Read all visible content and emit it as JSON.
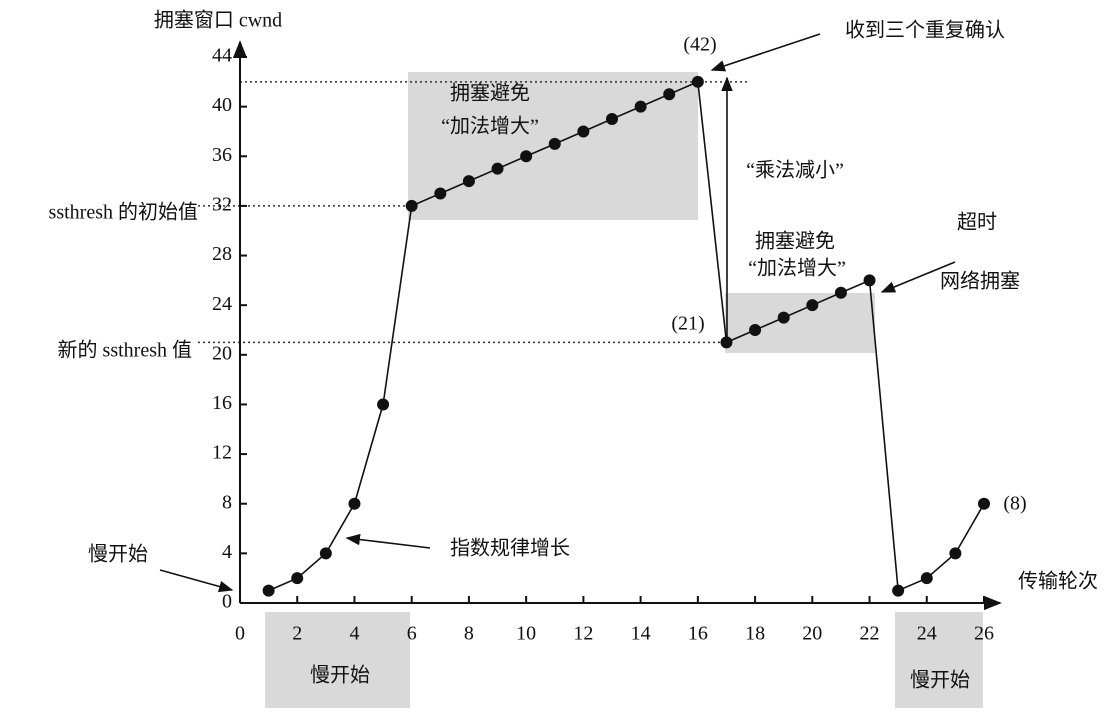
{
  "chart_data": {
    "type": "line",
    "x": [
      1,
      2,
      3,
      4,
      5,
      6,
      7,
      8,
      9,
      10,
      11,
      12,
      13,
      14,
      15,
      16,
      17,
      18,
      19,
      20,
      21,
      22,
      23,
      24,
      25,
      26
    ],
    "series": [
      {
        "color": "#111111",
        "values": [
          1,
          2,
          4,
          8,
          16,
          32,
          33,
          34,
          35,
          36,
          37,
          38,
          39,
          40,
          41,
          42,
          21,
          22,
          23,
          24,
          25,
          26,
          1,
          2,
          4,
          8
        ]
      }
    ],
    "xlim": [
      0,
      26
    ],
    "xticks": [
      0,
      2,
      4,
      6,
      8,
      10,
      12,
      14,
      16,
      18,
      20,
      22,
      24,
      26
    ],
    "ylim": [
      0,
      44
    ],
    "yticks": [
      0,
      4,
      8,
      12,
      16,
      20,
      24,
      28,
      32,
      36,
      40,
      44
    ],
    "annotations": [
      "拥塞窗口 cwnd",
      "传输轮次",
      "收到三个重复确认",
      "(42)",
      "拥塞避免",
      "“加法增大”",
      "“乘法减小”",
      "拥塞避免",
      "“加法增大”",
      "(21)",
      "超时",
      "网络拥塞",
      "ssthresh 的初始值",
      "新的 ssthresh 值",
      "慢开始",
      "指数规律增长",
      "(8)",
      "慢开始",
      "慢开始"
    ]
  }
}
